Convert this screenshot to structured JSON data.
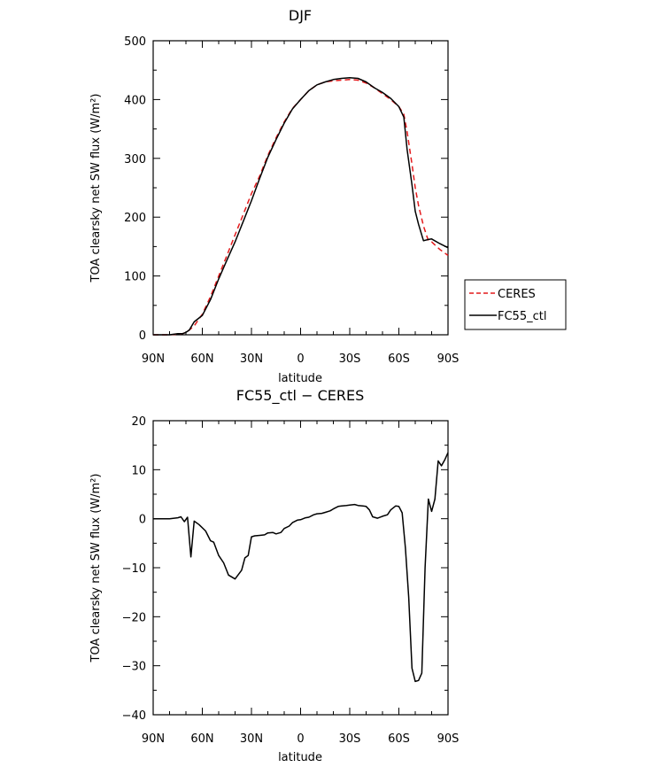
{
  "chart_data": [
    {
      "type": "line",
      "title": "DJF",
      "xlabel": "latitude",
      "ylabel": "TOA clearsky net SW flux (W/m²)",
      "xlim": [
        90,
        -90
      ],
      "ylim": [
        0,
        500
      ],
      "xticks": [
        90,
        60,
        30,
        0,
        -30,
        -60,
        -90
      ],
      "xtick_labels": [
        "90N",
        "60N",
        "30N",
        "0",
        "30S",
        "60S",
        "90S"
      ],
      "yticks": [
        0,
        100,
        200,
        300,
        400,
        500
      ],
      "ytick_labels": [
        "0",
        "100",
        "200",
        "300",
        "400",
        "500"
      ],
      "legend": "right",
      "series": [
        {
          "name": "CERES",
          "color": "#e41a1c",
          "dash": true,
          "x": [
            90,
            85,
            80,
            75,
            72,
            70,
            68,
            65,
            60,
            55,
            50,
            45,
            40,
            35,
            30,
            25,
            20,
            15,
            10,
            5,
            0,
            -5,
            -10,
            -15,
            -20,
            -25,
            -30,
            -35,
            -40,
            -45,
            -50,
            -55,
            -60,
            -63,
            -65,
            -68,
            -70,
            -72,
            -75,
            -78,
            -80,
            -85,
            -90
          ],
          "y": [
            0,
            0,
            0,
            1,
            2,
            4,
            8,
            15,
            35,
            65,
            100,
            135,
            170,
            205,
            240,
            270,
            305,
            335,
            362,
            385,
            400,
            415,
            425,
            430,
            432,
            433,
            434,
            433,
            428,
            420,
            410,
            400,
            388,
            375,
            345,
            290,
            250,
            220,
            185,
            160,
            158,
            145,
            135
          ]
        },
        {
          "name": "FC55_ctl",
          "color": "#000000",
          "dash": false,
          "x": [
            90,
            85,
            80,
            75,
            72,
            70,
            68,
            65,
            60,
            55,
            50,
            45,
            40,
            35,
            30,
            25,
            20,
            15,
            10,
            5,
            0,
            -5,
            -10,
            -15,
            -20,
            -25,
            -30,
            -35,
            -40,
            -45,
            -50,
            -55,
            -60,
            -63,
            -65,
            -68,
            -70,
            -72,
            -75,
            -78,
            -80,
            -85,
            -90
          ],
          "y": [
            0,
            0,
            0,
            2,
            2,
            4,
            8,
            22,
            33,
            60,
            95,
            127,
            158,
            193,
            228,
            266,
            302,
            332,
            360,
            384,
            400,
            415,
            425,
            430,
            434,
            436,
            437,
            436,
            430,
            420,
            412,
            402,
            388,
            370,
            315,
            255,
            210,
            188,
            160,
            162,
            163,
            155,
            148
          ]
        }
      ]
    },
    {
      "type": "line",
      "title": "FC55_ctl − CERES",
      "xlabel": "latitude",
      "ylabel": "TOA clearsky net SW flux (W/m²)",
      "xlim": [
        90,
        -90
      ],
      "ylim": [
        -40,
        20
      ],
      "xticks": [
        90,
        60,
        30,
        0,
        -30,
        -60,
        -90
      ],
      "xtick_labels": [
        "90N",
        "60N",
        "30N",
        "0",
        "30S",
        "60S",
        "90S"
      ],
      "yticks": [
        -40,
        -30,
        -20,
        -10,
        0,
        10,
        20
      ],
      "ytick_labels": [
        "−40",
        "−30",
        "−20",
        "−10",
        "0",
        "10",
        "20"
      ],
      "series": [
        {
          "color": "#000000",
          "x": [
            90,
            85,
            80,
            75,
            73,
            71,
            69,
            67,
            65,
            62,
            58,
            55,
            53,
            50,
            47,
            44,
            40,
            36,
            34,
            32,
            30,
            28,
            25,
            22,
            20,
            17,
            15,
            12,
            10,
            7,
            5,
            2,
            0,
            -3,
            -5,
            -8,
            -10,
            -13,
            -15,
            -18,
            -20,
            -23,
            -25,
            -28,
            -30,
            -33,
            -35,
            -38,
            -40,
            -42,
            -44,
            -47,
            -50,
            -53,
            -55,
            -58,
            -60,
            -62,
            -64,
            -66,
            -68,
            -70,
            -72,
            -74,
            -76,
            -78,
            -80,
            -82,
            -84,
            -86,
            -88,
            -90
          ],
          "y": [
            0,
            0,
            0,
            0.2,
            0.4,
            -0.6,
            0.3,
            -7.8,
            -0.5,
            -1.2,
            -2.5,
            -4.5,
            -4.8,
            -7.5,
            -9,
            -11.5,
            -12.3,
            -10.5,
            -8,
            -7.5,
            -3.7,
            -3.5,
            -3.4,
            -3.3,
            -2.9,
            -2.8,
            -3.1,
            -2.8,
            -2,
            -1.5,
            -0.8,
            -0.3,
            -0.2,
            0.2,
            0.3,
            0.8,
            1,
            1.1,
            1.3,
            1.6,
            2,
            2.5,
            2.6,
            2.7,
            2.8,
            2.9,
            2.7,
            2.6,
            2.5,
            1.8,
            0.4,
            0.1,
            0.5,
            0.8,
            1.8,
            2.6,
            2.5,
            1.2,
            -6,
            -16,
            -30.5,
            -33.2,
            -33,
            -31.5,
            -10,
            4,
            1.5,
            4,
            11.8,
            10.8,
            12,
            13.5
          ]
        }
      ]
    }
  ],
  "legend": {
    "ceres_label": "CERES",
    "model_label": "FC55_ctl"
  }
}
